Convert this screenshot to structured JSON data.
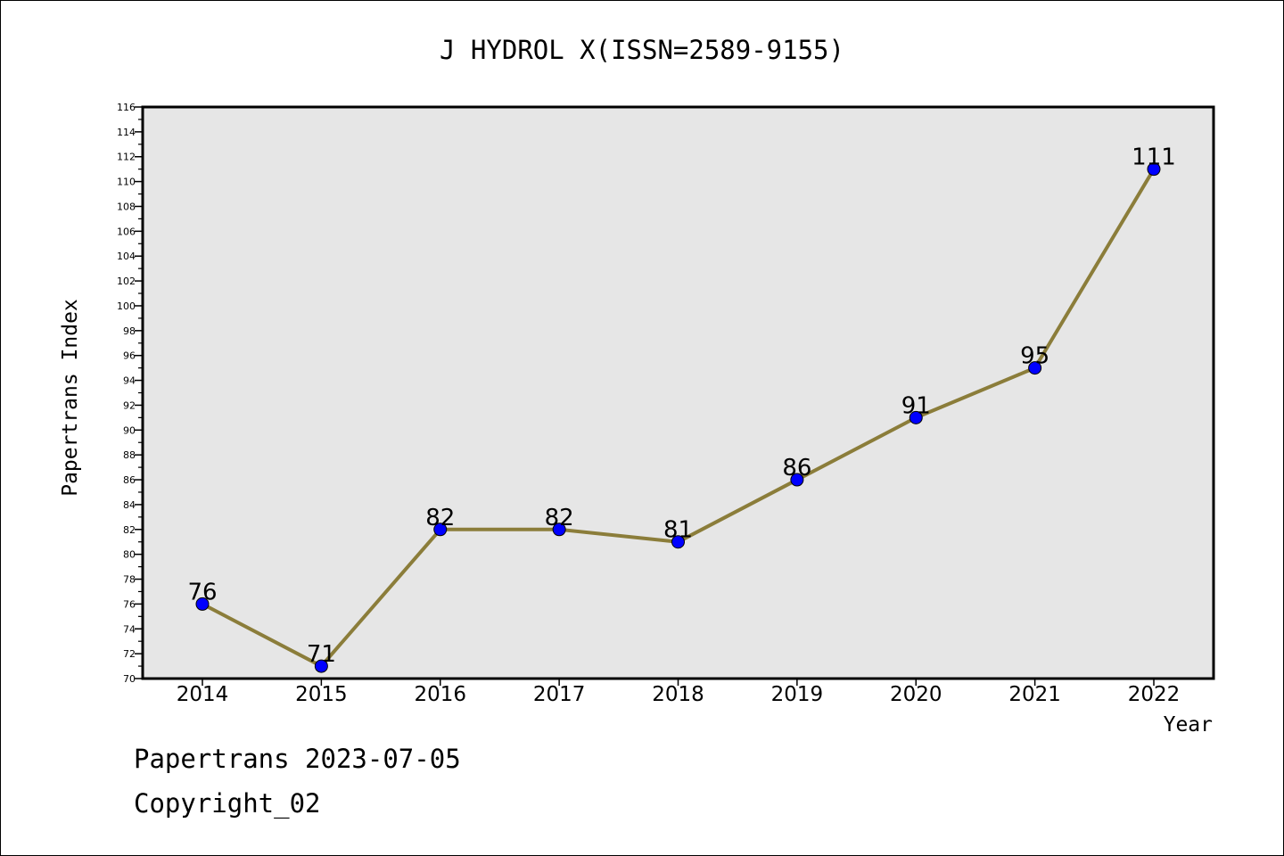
{
  "chart_data": {
    "type": "line",
    "title": "J HYDROL X(ISSN=2589-9155)",
    "xlabel": "Year",
    "ylabel": "Papertrans Index",
    "categories": [
      "2014",
      "2015",
      "2016",
      "2017",
      "2018",
      "2019",
      "2020",
      "2021",
      "2022"
    ],
    "series": [
      {
        "values": [
          76,
          71,
          82,
          82,
          81,
          86,
          91,
          95,
          111
        ]
      }
    ],
    "ylim": [
      70,
      116
    ],
    "yticks": [
      "70",
      "72",
      "74",
      "76",
      "78",
      "80",
      "82",
      "84",
      "86",
      "88",
      "90",
      "92",
      "94",
      "96",
      "98",
      "100",
      "102",
      "104",
      "106",
      "108",
      "110",
      "112",
      "114",
      "116"
    ],
    "grid": false,
    "data_labels": true,
    "colors": {
      "line": "#8b7d3a",
      "marker": "#0000ff",
      "plot_background": "#e6e6e6"
    }
  },
  "footer": {
    "line1": "Papertrans 2023-07-05",
    "line2": "Copyright_02"
  }
}
